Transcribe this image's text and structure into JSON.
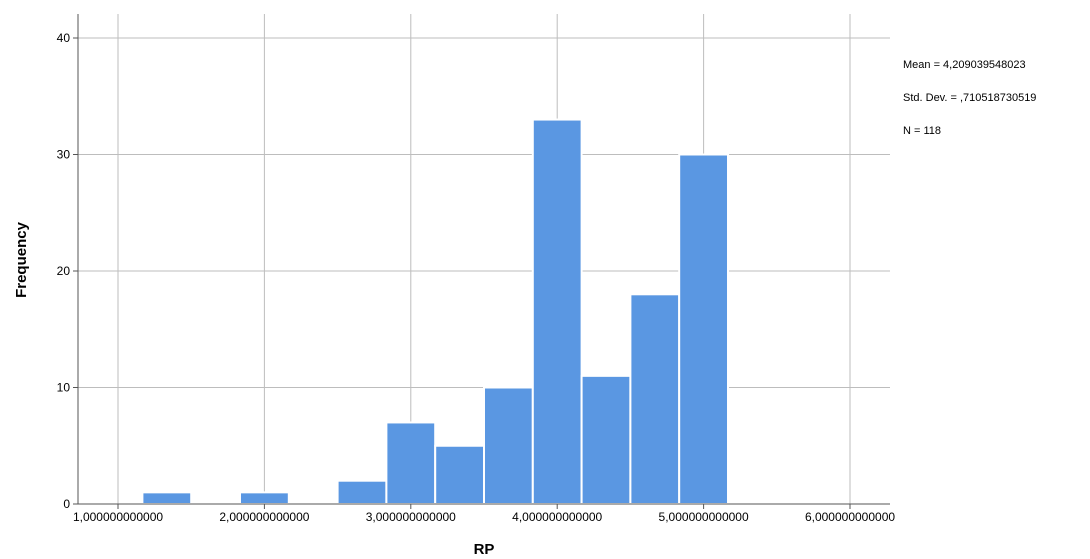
{
  "chart_data": {
    "type": "bar",
    "subtype": "histogram",
    "title": "",
    "xlabel": "RP",
    "ylabel": "Frequency",
    "x_range": [
      1.0,
      6.0
    ],
    "ylim": [
      0,
      40
    ],
    "x_ticks": [
      1,
      2,
      3,
      4,
      5,
      6
    ],
    "x_tick_labels": [
      "1,000000000000",
      "2,000000000000",
      "3,000000000000",
      "4,000000000000",
      "5,000000000000",
      "6,000000000000"
    ],
    "y_ticks": [
      0,
      10,
      20,
      30,
      40
    ],
    "y_tick_labels": [
      "0",
      "10",
      "20",
      "30",
      "40"
    ],
    "bins": [
      {
        "start": 1.1667,
        "end": 1.5,
        "count": 1
      },
      {
        "start": 1.8333,
        "end": 2.1667,
        "count": 1
      },
      {
        "start": 2.5,
        "end": 2.8333,
        "count": 2
      },
      {
        "start": 2.8333,
        "end": 3.1667,
        "count": 7
      },
      {
        "start": 3.1667,
        "end": 3.5,
        "count": 5
      },
      {
        "start": 3.5,
        "end": 3.8333,
        "count": 10
      },
      {
        "start": 3.8333,
        "end": 4.1667,
        "count": 33
      },
      {
        "start": 4.1667,
        "end": 4.5,
        "count": 11
      },
      {
        "start": 4.5,
        "end": 4.8333,
        "count": 18
      },
      {
        "start": 4.8333,
        "end": 5.1667,
        "count": 30
      }
    ],
    "grid": true,
    "bar_color": "#5a97e2",
    "bar_edge_color": "#ffffff",
    "grid_color": "#bdbdbd",
    "stats_text": [
      "Mean = 4,209039548023",
      "Std. Dev. = ,710518730519",
      "N = 118"
    ]
  }
}
